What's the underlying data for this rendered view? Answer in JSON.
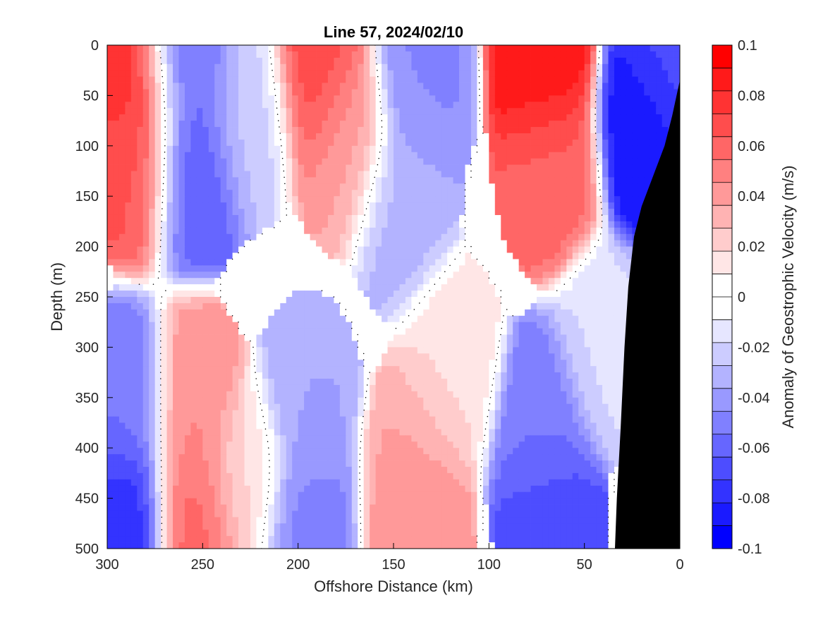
{
  "chart_data": {
    "type": "heatmap",
    "subtype": "filled contour section",
    "title": "Line 57, 2024/02/10",
    "xlabel": "Offshore Distance (km)",
    "ylabel": "Depth (m)",
    "colorbar_label": "Anomaly of Geostrophic Velocity (m/s)",
    "x_direction": "reversed",
    "y_direction": "reversed",
    "xlim": [
      300,
      0
    ],
    "ylim": [
      0,
      500
    ],
    "x_ticks": [
      300,
      250,
      200,
      150,
      100,
      50,
      0
    ],
    "y_ticks": [
      0,
      50,
      100,
      150,
      200,
      250,
      300,
      350,
      400,
      450,
      500
    ],
    "x_tick_labels": [
      "300",
      "250",
      "200",
      "150",
      "100",
      "50",
      "0"
    ],
    "y_tick_labels": [
      "0",
      "50",
      "100",
      "150",
      "200",
      "250",
      "300",
      "350",
      "400",
      "450",
      "500"
    ],
    "colorbar": {
      "range": [
        -0.1,
        0.1
      ],
      "ticks": [
        0.1,
        0.08,
        0.06,
        0.04,
        0.02,
        0,
        -0.02,
        -0.04,
        -0.06,
        -0.08,
        -0.1
      ],
      "tick_labels": [
        "0.1",
        "0.08",
        "0.06",
        "0.04",
        "0.02",
        "0",
        "-0.02",
        "-0.04",
        "-0.06",
        "-0.08",
        "-0.1"
      ],
      "levels": [
        0.1,
        0.09,
        0.08,
        0.07,
        0.06,
        0.05,
        0.04,
        0.03,
        0.02,
        0.01,
        0,
        -0.01,
        -0.02,
        -0.03,
        -0.04,
        -0.05,
        -0.06,
        -0.07,
        -0.08,
        -0.09,
        -0.1
      ],
      "colors": [
        "#ff0000",
        "#ff1a1a",
        "#ff3333",
        "#ff4d4d",
        "#ff6666",
        "#ff8080",
        "#ff9999",
        "#ffb3b3",
        "#ffcccc",
        "#ffe6e6",
        "#ffffff",
        "#ffffff",
        "#e6e6ff",
        "#ccccff",
        "#b3b3ff",
        "#9999ff",
        "#8080ff",
        "#6666ff",
        "#4d4dff",
        "#3333ff",
        "#1a1aff",
        "#0000ff"
      ]
    },
    "grid": false,
    "zero_contour_color": "#000000",
    "land_mask_color": "#000000",
    "cells": [
      {
        "x": 287,
        "y": 35,
        "v": 0.085
      },
      {
        "x": 286,
        "y": 110,
        "v": 0.068
      },
      {
        "x": 260,
        "y": 20,
        "v": -0.058
      },
      {
        "x": 255,
        "y": 120,
        "v": -0.065
      },
      {
        "x": 225,
        "y": 70,
        "v": -0.025
      },
      {
        "x": 190,
        "y": 35,
        "v": 0.075
      },
      {
        "x": 175,
        "y": 95,
        "v": 0.038
      },
      {
        "x": 135,
        "y": 40,
        "v": -0.048
      },
      {
        "x": 145,
        "y": 160,
        "v": -0.032
      },
      {
        "x": 72,
        "y": 25,
        "v": 0.095
      },
      {
        "x": 68,
        "y": 120,
        "v": 0.062
      },
      {
        "x": 18,
        "y": 80,
        "v": -0.095
      },
      {
        "x": 5,
        "y": 20,
        "v": -0.07
      },
      {
        "x": 290,
        "y": 360,
        "v": -0.055
      },
      {
        "x": 292,
        "y": 470,
        "v": -0.085
      },
      {
        "x": 255,
        "y": 360,
        "v": 0.048
      },
      {
        "x": 253,
        "y": 470,
        "v": 0.062
      },
      {
        "x": 228,
        "y": 430,
        "v": 0.018
      },
      {
        "x": 195,
        "y": 360,
        "v": -0.038
      },
      {
        "x": 195,
        "y": 470,
        "v": -0.052
      },
      {
        "x": 140,
        "y": 420,
        "v": 0.038
      },
      {
        "x": 138,
        "y": 485,
        "v": 0.048
      },
      {
        "x": 120,
        "y": 320,
        "v": 0.018
      },
      {
        "x": 72,
        "y": 380,
        "v": -0.055
      },
      {
        "x": 68,
        "y": 475,
        "v": -0.075
      },
      {
        "x": 40,
        "y": 300,
        "v": -0.018
      }
    ],
    "land_boundary": [
      {
        "x": 0,
        "y": 35
      },
      {
        "x": 4,
        "y": 70
      },
      {
        "x": 8,
        "y": 100
      },
      {
        "x": 14,
        "y": 130
      },
      {
        "x": 20,
        "y": 160
      },
      {
        "x": 24,
        "y": 190
      },
      {
        "x": 27,
        "y": 240
      },
      {
        "x": 29,
        "y": 300
      },
      {
        "x": 31,
        "y": 380
      },
      {
        "x": 33,
        "y": 450
      },
      {
        "x": 34,
        "y": 500
      }
    ]
  }
}
